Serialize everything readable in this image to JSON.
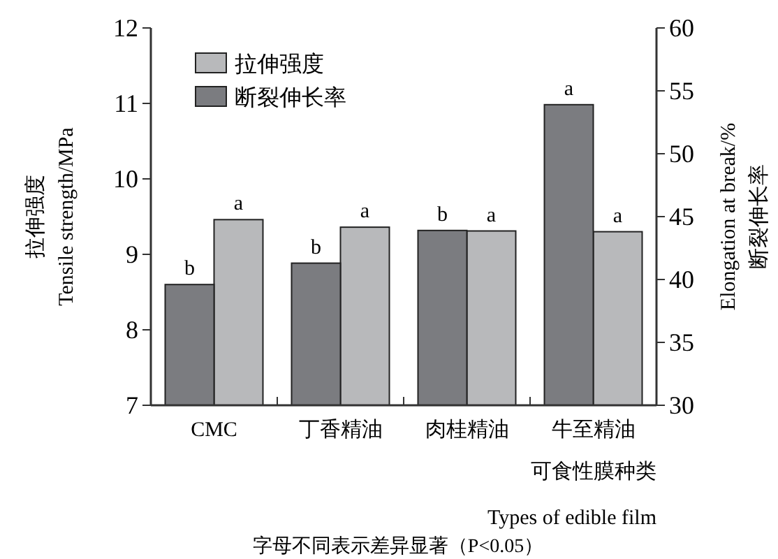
{
  "chart_data": {
    "type": "bar",
    "categories": [
      "CMC",
      "丁香精油",
      "肉桂精油",
      "牛至精油"
    ],
    "series": [
      {
        "name": "拉伸强度",
        "color": "#b8b9bb",
        "values": [
          9.46,
          9.36,
          9.31,
          9.3
        ],
        "value_labels": [
          "a",
          "a",
          "a",
          "a"
        ]
      },
      {
        "name": "断裂伸长率",
        "color": "#7b7c80",
        "axis": "y2",
        "values": [
          39.6,
          41.3,
          43.9,
          53.9
        ],
        "value_labels": [
          "b",
          "b",
          "b",
          "a"
        ]
      }
    ],
    "ylim": [
      7,
      12
    ],
    "yticks": [
      7,
      8,
      9,
      10,
      11,
      12
    ],
    "y2lim": [
      30,
      60
    ],
    "y2ticks": [
      30,
      35,
      40,
      45,
      50,
      55,
      60
    ],
    "ylabel": "拉伸强度\nTensile strength/MPa",
    "y2label": "Elongation at break/%\n断裂伸长率",
    "xlabel": "可食性膜种类\nTypes of edible film",
    "annotations": [
      "字母不同表示差异显著（P<0.05）"
    ],
    "legend": "top left",
    "grid": false
  }
}
